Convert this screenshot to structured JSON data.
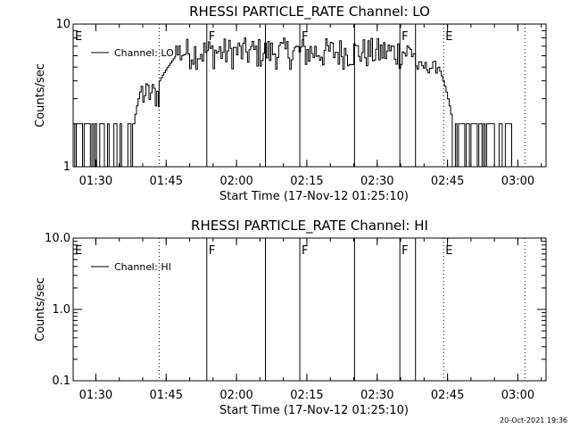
{
  "footer_timestamp": "20-Oct-2021 19:36",
  "chart_data": [
    {
      "type": "line",
      "title": "RHESSI PARTICLE_RATE Channel: LO",
      "xlabel": "Start Time (17-Nov-12 01:25:10)",
      "ylabel": "Counts/sec",
      "yscale": "log",
      "xlim": [
        "01:25:10",
        "03:06:00"
      ],
      "ylim": [
        1,
        10
      ],
      "x_ticks": [
        "01:30",
        "01:45",
        "02:00",
        "02:15",
        "02:30",
        "02:45",
        "03:00"
      ],
      "y_ticks": [
        "1",
        "10"
      ],
      "legend": {
        "placement": "top-left",
        "entry": "Channel: LO"
      },
      "markers": [
        {
          "time": "01:25:10",
          "label": "E",
          "style": "dotted"
        },
        {
          "time": "01:43:30",
          "label": "",
          "style": "dotted"
        },
        {
          "time": "01:53:40",
          "label": "F",
          "style": "solid"
        },
        {
          "time": "02:06:10",
          "label": "",
          "style": "solid"
        },
        {
          "time": "02:13:30",
          "label": "F",
          "style": "solid"
        },
        {
          "time": "02:25:10",
          "label": "",
          "style": "solid"
        },
        {
          "time": "02:34:50",
          "label": "F",
          "style": "solid"
        },
        {
          "time": "02:38:10",
          "label": "",
          "style": "solid"
        },
        {
          "time": "02:44:10",
          "label": "E",
          "style": "dotted"
        },
        {
          "time": "03:01:30",
          "label": "",
          "style": "dotted"
        }
      ],
      "series": [
        {
          "segments": [
            {
              "from": "01:25:10",
              "to": "01:38:00",
              "behavior": "noise",
              "low": 1,
              "high": 2
            },
            {
              "from": "01:38:00",
              "to": "01:40:00",
              "behavior": "ramp",
              "start": 2,
              "end": 4
            },
            {
              "from": "01:40:00",
              "to": "01:43:30",
              "behavior": "noise",
              "low": 2.5,
              "high": 4
            },
            {
              "from": "01:43:30",
              "to": "01:47:00",
              "behavior": "ramp",
              "start": 4,
              "end": 6
            },
            {
              "from": "01:47:00",
              "to": "02:38:10",
              "behavior": "noise",
              "low": 4.8,
              "high": 8
            },
            {
              "from": "02:38:10",
              "to": "02:43:00",
              "behavior": "noise",
              "low": 4.5,
              "high": 5.5
            },
            {
              "from": "02:43:00",
              "to": "02:46:00",
              "behavior": "ramp",
              "start": 5,
              "end": 2
            },
            {
              "from": "02:46:00",
              "to": "02:59:00",
              "behavior": "noise",
              "low": 1,
              "high": 2
            }
          ]
        }
      ]
    },
    {
      "type": "line",
      "title": "RHESSI PARTICLE_RATE Channel: HI",
      "xlabel": "Start Time (17-Nov-12 01:25:10)",
      "ylabel": "Counts/sec",
      "yscale": "log",
      "xlim": [
        "01:25:10",
        "03:06:00"
      ],
      "ylim": [
        0.1,
        10
      ],
      "x_ticks": [
        "01:30",
        "01:45",
        "02:00",
        "02:15",
        "02:30",
        "02:45",
        "03:00"
      ],
      "y_ticks": [
        "0.1",
        "1.0",
        "10.0"
      ],
      "legend": {
        "placement": "top-left",
        "entry": "Channel: HI"
      },
      "markers": [
        {
          "time": "01:25:10",
          "label": "E",
          "style": "dotted"
        },
        {
          "time": "01:43:30",
          "label": "",
          "style": "dotted"
        },
        {
          "time": "01:53:40",
          "label": "F",
          "style": "solid"
        },
        {
          "time": "02:06:10",
          "label": "",
          "style": "solid"
        },
        {
          "time": "02:13:30",
          "label": "F",
          "style": "solid"
        },
        {
          "time": "02:25:10",
          "label": "",
          "style": "solid"
        },
        {
          "time": "02:34:50",
          "label": "F",
          "style": "solid"
        },
        {
          "time": "02:38:10",
          "label": "",
          "style": "solid"
        },
        {
          "time": "02:44:10",
          "label": "E",
          "style": "dotted"
        },
        {
          "time": "03:01:30",
          "label": "",
          "style": "dotted"
        }
      ],
      "series": []
    }
  ]
}
